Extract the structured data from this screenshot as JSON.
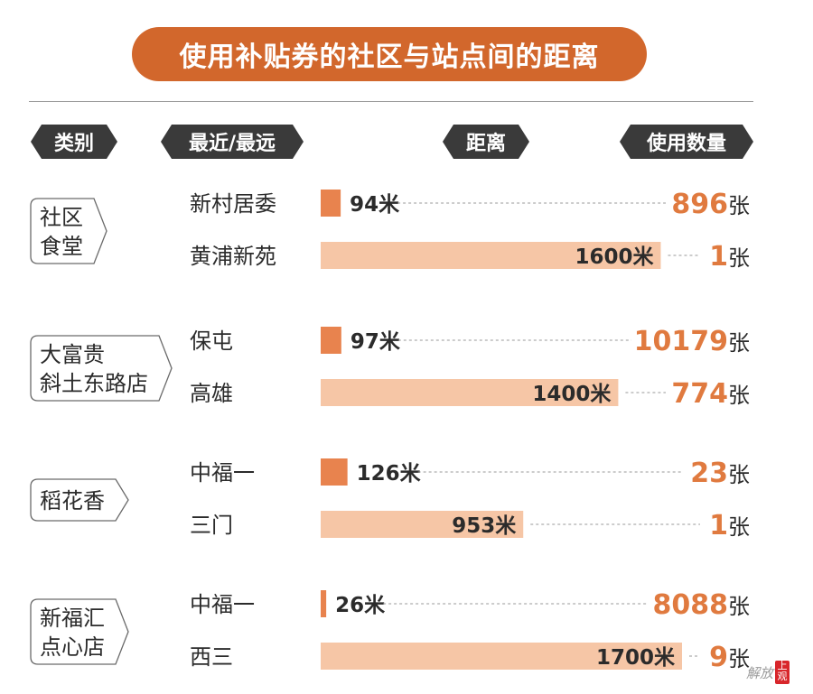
{
  "title": "使用补贴券的社区与站点间的距离",
  "headers": {
    "category": "类别",
    "nearest_farthest": "最近/最远",
    "distance": "距离",
    "usage_count": "使用数量"
  },
  "units": {
    "distance": "米",
    "count": "张"
  },
  "colors": {
    "title_bg": "#d2672c",
    "near_bar": "#e8834e",
    "far_bar": "#f6c6a6",
    "count_text": "#e07a3f",
    "header_bg": "#3a3a3a"
  },
  "chart_data": {
    "type": "bar",
    "value_unit": "米",
    "groups": [
      {
        "category": [
          "社区",
          "食堂"
        ],
        "rows": [
          {
            "kind": "nearest",
            "place": "新村居委",
            "distance": 94,
            "count": 896
          },
          {
            "kind": "farthest",
            "place": "黄浦新苑",
            "distance": 1600,
            "count": 1
          }
        ]
      },
      {
        "category": [
          "大富贵",
          "斜土东路店"
        ],
        "rows": [
          {
            "kind": "nearest",
            "place": "保屯",
            "distance": 97,
            "count": 10179
          },
          {
            "kind": "farthest",
            "place": "高雄",
            "distance": 1400,
            "count": 774
          }
        ]
      },
      {
        "category": [
          "稻花香"
        ],
        "rows": [
          {
            "kind": "nearest",
            "place": "中福一",
            "distance": 126,
            "count": 23
          },
          {
            "kind": "farthest",
            "place": "三门",
            "distance": 953,
            "count": 1
          }
        ]
      },
      {
        "category": [
          "新福汇",
          "点心店"
        ],
        "rows": [
          {
            "kind": "nearest",
            "place": "中福一",
            "distance": 26,
            "count": 8088
          },
          {
            "kind": "farthest",
            "place": "西三",
            "distance": 1700,
            "count": 9
          }
        ]
      }
    ]
  },
  "logo": {
    "script_text": "解放日報",
    "seal_text": "上观"
  }
}
